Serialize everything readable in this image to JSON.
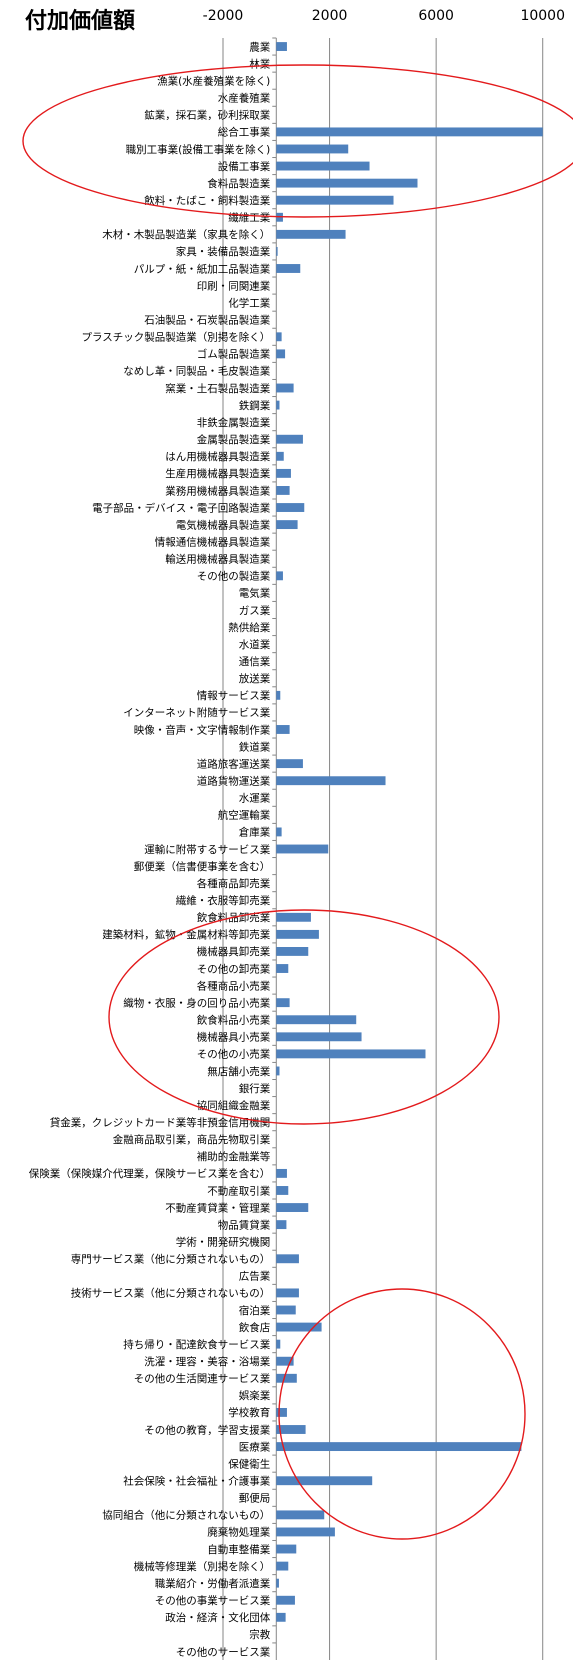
{
  "chart_data": {
    "type": "bar",
    "orientation": "horizontal",
    "title": "付加価値額",
    "xlabel": "",
    "ylabel": "",
    "xlim": [
      -2000,
      12000
    ],
    "x_ticks": [
      -2000,
      2000,
      6000,
      10000
    ],
    "x_tick_labels": [
      "-2000",
      "2000",
      "6000",
      "10000"
    ],
    "grid": "vertical",
    "bar_color": "#4f81bd",
    "annotations": [
      {
        "shape": "ellipse",
        "color": "#e31a1c",
        "description": "circles 漁業 through 木材・木製品製造業"
      },
      {
        "shape": "ellipse",
        "color": "#e31a1c",
        "description": "circles 飲食料品卸売業 through 協同組織金融業"
      },
      {
        "shape": "ellipse",
        "color": "#e31a1c",
        "description": "circles 学校教育 through 郵便局 bars"
      }
    ],
    "categories": [
      "農業",
      "林業",
      "漁業(水産養殖業を除く)",
      "水産養殖業",
      "鉱業，採石業，砂利採取業",
      "総合工事業",
      "職別工事業(設備工事業を除く)",
      "設備工事業",
      "食料品製造業",
      "飲料・たばこ・飼料製造業",
      "繊維工業",
      "木材・木製品製造業（家具を除く）",
      "家具・装備品製造業",
      "パルプ・紙・紙加工品製造業",
      "印刷・同関連業",
      "化学工業",
      "石油製品・石炭製品製造業",
      "プラスチック製品製造業（別掲を除く）",
      "ゴム製品製造業",
      "なめし革・同製品・毛皮製造業",
      "窯業・土石製品製造業",
      "鉄鋼業",
      "非鉄金属製造業",
      "金属製品製造業",
      "はん用機械器具製造業",
      "生産用機械器具製造業",
      "業務用機械器具製造業",
      "電子部品・デバイス・電子回路製造業",
      "電気機械器具製造業",
      "情報通信機械器具製造業",
      "輸送用機械器具製造業",
      "その他の製造業",
      "電気業",
      "ガス業",
      "熱供給業",
      "水道業",
      "通信業",
      "放送業",
      "情報サービス業",
      "インターネット附随サービス業",
      "映像・音声・文字情報制作業",
      "鉄道業",
      "道路旅客運送業",
      "道路貨物運送業",
      "水運業",
      "航空運輸業",
      "倉庫業",
      "運輸に附帯するサービス業",
      "郵便業（信書便事業を含む）",
      "各種商品卸売業",
      "繊維・衣服等卸売業",
      "飲食料品卸売業",
      "建築材料，鉱物・金属材料等卸売業",
      "機械器具卸売業",
      "その他の卸売業",
      "各種商品小売業",
      "織物・衣服・身の回り品小売業",
      "飲食料品小売業",
      "機械器具小売業",
      "その他の小売業",
      "無店舗小売業",
      "銀行業",
      "協同組織金融業",
      "貸金業，クレジットカード業等非預金信用機関",
      "金融商品取引業，商品先物取引業",
      "補助的金融業等",
      "保険業（保険媒介代理業，保険サービス業を含む）",
      "不動産取引業",
      "不動産賃貸業・管理業",
      "物品賃貸業",
      "学術・開発研究機関",
      "専門サービス業（他に分類されないもの）",
      "広告業",
      "技術サービス業（他に分類されないもの）",
      "宿泊業",
      "飲食店",
      "持ち帰り・配達飲食サービス業",
      "洗濯・理容・美容・浴場業",
      "その他の生活関連サービス業",
      "娯楽業",
      "学校教育",
      "その他の教育，学習支援業",
      "医療業",
      "保健衛生",
      "社会保険・社会福祉・介護事業",
      "郵便局",
      "協同組合（他に分類されないもの）",
      "廃棄物処理業",
      "自動車整備業",
      "機械等修理業（別掲を除く）",
      "職業紹介・労働者派遣業",
      "その他の事業サービス業",
      "政治・経済・文化団体",
      "宗教",
      "その他のサービス業"
    ],
    "values": [
      400,
      0,
      0,
      0,
      0,
      10000,
      2700,
      3500,
      5300,
      4400,
      250,
      2600,
      50,
      900,
      0,
      0,
      0,
      200,
      330,
      0,
      650,
      120,
      0,
      1000,
      280,
      550,
      500,
      1050,
      800,
      0,
      0,
      250,
      0,
      0,
      0,
      0,
      0,
      0,
      150,
      0,
      500,
      0,
      1000,
      4100,
      0,
      0,
      200,
      1950,
      0,
      0,
      0,
      1300,
      1600,
      1200,
      450,
      0,
      500,
      3000,
      3200,
      5600,
      120,
      0,
      0,
      0,
      0,
      0,
      400,
      450,
      1200,
      380,
      0,
      850,
      0,
      850,
      730,
      1700,
      150,
      650,
      770,
      0,
      400,
      1100,
      9200,
      0,
      3600,
      0,
      1800,
      2200,
      750,
      450,
      100,
      700,
      350,
      0,
      0
    ]
  }
}
